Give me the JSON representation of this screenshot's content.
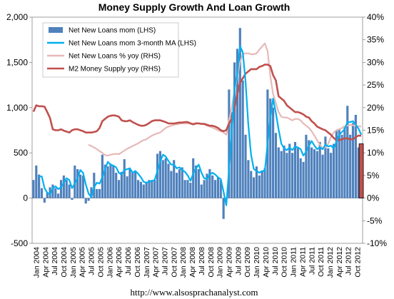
{
  "chart_data": {
    "type": "bar",
    "title": "Money Supply Growth And Loan Growth",
    "footer": "http://www.alsosprachanalyst.com",
    "colors": {
      "bars": "#4f81bd",
      "ma_line": "#00b0f0",
      "loans_yoy": "#e6b9b8",
      "m2_yoy": "#c0504d",
      "last_bar": "#c0504d"
    },
    "left_axis": {
      "min": -500,
      "max": 2000,
      "step": 500,
      "ticks": [
        "-500",
        "0",
        "500",
        "1,000",
        "1,500",
        "2,000"
      ]
    },
    "right_axis": {
      "min": -0.1,
      "max": 0.4,
      "step": 0.05,
      "ticks": [
        "-10%",
        "-5%",
        "0%",
        "5%",
        "10%",
        "15%",
        "20%",
        "25%",
        "30%",
        "35%",
        "40%"
      ]
    },
    "x_ticks": [
      "Jan 2004",
      "Apr 2004",
      "Jul 2004",
      "Oct 2004",
      "Jan 2005",
      "Apr 2005",
      "Jul 2005",
      "Oct 2005",
      "Jan 2006",
      "Apr 2006",
      "Jul 2006",
      "Oct 2006",
      "Jan 2007",
      "Apr 2007",
      "Jul 2007",
      "Oct 2007",
      "Jan 2008",
      "Apr 2008",
      "Jul 2008",
      "Oct 2008",
      "Jan 2009",
      "Apr 2009",
      "Jul 2009",
      "Oct 2009",
      "Jan 2010",
      "Apr 2010",
      "Jul 2010",
      "Oct 2010",
      "Jan 2011",
      "Apr 2011",
      "Jul 2011",
      "Oct 2011",
      "Jan 2012",
      "Apr 2012",
      "Jul 2012",
      "Oct 2012"
    ],
    "series": [
      {
        "name": "Net New Loans mom (LHS)",
        "kind": "bar",
        "axis": "left",
        "values": [
          200,
          360,
          260,
          110,
          -50,
          60,
          120,
          150,
          110,
          50,
          200,
          250,
          200,
          150,
          -20,
          360,
          320,
          260,
          250,
          -60,
          -30,
          120,
          280,
          100,
          100,
          480,
          370,
          350,
          380,
          360,
          280,
          200,
          290,
          430,
          240,
          320,
          280,
          300,
          200,
          180,
          150,
          180,
          200,
          200,
          200,
          490,
          520,
          420,
          440,
          380,
          300,
          420,
          280,
          320,
          340,
          200,
          200,
          170,
          440,
          360,
          320,
          150,
          200,
          270,
          320,
          250,
          200,
          230,
          200,
          -230,
          -10,
          1200,
          950,
          1500,
          1650,
          1880,
          1300,
          700,
          420,
          300,
          230,
          350,
          250,
          300,
          330,
          1200,
          1100,
          1000,
          720,
          560,
          520,
          580,
          500,
          600,
          500,
          620,
          560,
          440,
          400,
          700,
          640,
          560,
          540,
          520,
          620,
          480,
          680,
          550,
          500,
          600,
          750,
          760,
          700,
          800,
          1020,
          700,
          830,
          920,
          560,
          600
        ]
      },
      {
        "name": "Net New Loans mom 3-month MA (LHS)",
        "kind": "line",
        "axis": "left",
        "values": [
          null,
          null,
          240,
          240,
          110,
          60,
          40,
          110,
          130,
          100,
          120,
          170,
          220,
          200,
          110,
          160,
          220,
          310,
          280,
          150,
          50,
          10,
          120,
          170,
          160,
          230,
          320,
          400,
          370,
          360,
          340,
          280,
          260,
          310,
          320,
          330,
          280,
          300,
          270,
          230,
          180,
          170,
          180,
          190,
          200,
          300,
          400,
          480,
          460,
          410,
          370,
          370,
          330,
          340,
          310,
          290,
          250,
          190,
          270,
          330,
          370,
          280,
          220,
          210,
          260,
          280,
          260,
          230,
          210,
          70,
          -80,
          320,
          720,
          1220,
          1370,
          1680,
          1610,
          1290,
          810,
          480,
          320,
          300,
          280,
          300,
          300,
          600,
          880,
          1100,
          940,
          760,
          600,
          550,
          530,
          560,
          530,
          570,
          560,
          540,
          470,
          510,
          580,
          630,
          580,
          540,
          560,
          540,
          590,
          570,
          580,
          550,
          620,
          700,
          730,
          760,
          840,
          840,
          850,
          810,
          770,
          700
        ]
      },
      {
        "name": "Net New Loans % yoy (RHS)",
        "kind": "line",
        "axis": "right",
        "values": [
          null,
          null,
          null,
          null,
          null,
          null,
          null,
          null,
          null,
          null,
          null,
          null,
          null,
          null,
          null,
          null,
          null,
          null,
          null,
          null,
          0.118,
          0.115,
          0.112,
          0.108,
          0.104,
          0.1,
          0.095,
          0.094,
          0.096,
          0.097,
          0.098,
          0.097,
          0.101,
          0.105,
          0.109,
          0.112,
          0.115,
          0.118,
          0.121,
          0.125,
          0.128,
          0.13,
          0.134,
          0.138,
          0.141,
          0.143,
          0.145,
          0.15,
          0.155,
          0.158,
          0.16,
          0.162,
          0.163,
          0.164,
          0.165,
          0.165,
          0.165,
          0.165,
          0.165,
          0.166,
          0.166,
          0.164,
          0.163,
          0.16,
          0.158,
          0.156,
          0.153,
          0.15,
          0.148,
          0.145,
          0.14,
          0.172,
          0.2,
          0.238,
          0.268,
          0.3,
          0.318,
          0.32,
          0.32,
          0.318,
          0.318,
          0.32,
          0.328,
          0.335,
          0.342,
          0.325,
          0.27,
          0.23,
          0.21,
          0.19,
          0.18,
          0.178,
          0.178,
          0.175,
          0.172,
          0.175,
          0.175,
          0.172,
          0.165,
          0.16,
          0.155,
          0.148,
          0.138,
          0.128,
          0.118,
          0.11,
          0.112,
          0.12,
          0.135,
          0.145,
          0.15,
          0.152,
          0.155,
          0.158,
          0.16,
          0.162,
          0.161,
          0.16,
          0.159,
          0.158
        ]
      },
      {
        "name": "M2 Money Supply yoy (RHS)",
        "kind": "line",
        "axis": "right",
        "values": [
          0.191,
          0.205,
          0.203,
          0.203,
          0.202,
          0.19,
          0.177,
          0.152,
          0.15,
          0.15,
          0.152,
          0.149,
          0.147,
          0.145,
          0.15,
          0.152,
          0.152,
          0.15,
          0.148,
          0.145,
          0.145,
          0.145,
          0.146,
          0.148,
          0.155,
          0.17,
          0.175,
          0.18,
          0.182,
          0.183,
          0.182,
          0.18,
          0.172,
          0.17,
          0.17,
          0.172,
          0.168,
          0.165,
          0.162,
          0.16,
          0.16,
          0.162,
          0.166,
          0.17,
          0.172,
          0.172,
          0.172,
          0.17,
          0.168,
          0.165,
          0.165,
          0.165,
          0.166,
          0.167,
          0.167,
          0.168,
          0.168,
          0.165,
          0.163,
          0.165,
          0.165,
          0.164,
          0.164,
          0.162,
          0.16,
          0.16,
          0.158,
          0.155,
          0.15,
          0.148,
          0.15,
          0.165,
          0.175,
          0.2,
          0.23,
          0.255,
          0.265,
          0.275,
          0.28,
          0.285,
          0.285,
          0.285,
          0.29,
          0.292,
          0.295,
          0.295,
          0.292,
          0.272,
          0.26,
          0.225,
          0.22,
          0.215,
          0.205,
          0.2,
          0.195,
          0.19,
          0.19,
          0.188,
          0.185,
          0.18,
          0.178,
          0.17,
          0.165,
          0.158,
          0.155,
          0.152,
          0.15,
          0.145,
          0.14,
          0.133,
          0.128,
          0.128,
          0.13,
          0.132,
          0.132,
          0.13,
          0.13,
          0.135,
          0.138,
          0.138
        ]
      },
      {
        "name": "",
        "kind": "bar",
        "axis": "right",
        "highlight": true,
        "index": 119,
        "value": 0.12
      }
    ],
    "legend_placement": "top-left",
    "grid": false
  }
}
